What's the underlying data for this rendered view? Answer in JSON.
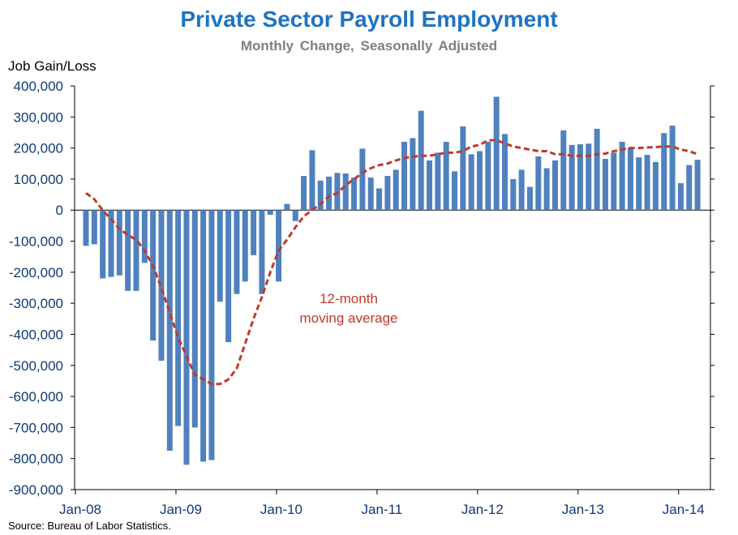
{
  "chart_data": {
    "type": "bar",
    "title": "Private Sector Payroll Employment",
    "subtitle": "Monthly Change, Seasonally Adjusted",
    "ylabel": "Job Gain/Loss",
    "xlabel": "",
    "source": "Source: Bureau of Labor Statistics.",
    "ylim": [
      -900000,
      400000
    ],
    "y_ticks": [
      400000,
      300000,
      200000,
      100000,
      0,
      -100000,
      -200000,
      -300000,
      -400000,
      -500000,
      -600000,
      -700000,
      -800000,
      -900000
    ],
    "y_tick_labels": [
      "400,000",
      "300,000",
      "200,000",
      "100,000",
      "0",
      "-100,000",
      "-200,000",
      "-300,000",
      "-400,000",
      "-500,000",
      "-600,000",
      "-700,000",
      "-800,000",
      "-900,000"
    ],
    "x_tick_labels": [
      "Jan-08",
      "Jan-09",
      "Jan-10",
      "Jan-11",
      "Jan-12",
      "Jan-13",
      "Jan-14"
    ],
    "start_month": "Jan-08",
    "series": [
      {
        "name": "Monthly change",
        "color": "#4f81bd",
        "values": [
          -115000,
          -110000,
          -220000,
          -215000,
          -210000,
          -260000,
          -260000,
          -170000,
          -420000,
          -485000,
          -775000,
          -695000,
          -820000,
          -700000,
          -810000,
          -805000,
          -295000,
          -425000,
          -270000,
          -230000,
          -145000,
          -270000,
          -15000,
          -230000,
          20000,
          -35000,
          110000,
          193000,
          95000,
          108000,
          120000,
          118000,
          105000,
          198000,
          105000,
          70000,
          110000,
          130000,
          220000,
          232000,
          320000,
          160000,
          185000,
          220000,
          125000,
          270000,
          180000,
          190000,
          220000,
          365000,
          245000,
          100000,
          130000,
          75000,
          173000,
          135000,
          160000,
          257000,
          210000,
          212000,
          214000,
          262000,
          165000,
          185000,
          220000,
          202000,
          170000,
          178000,
          155000,
          248000,
          272000,
          87000,
          145000,
          162000
        ]
      },
      {
        "name": "12-month moving average",
        "color": "#c0392b",
        "style": "dashed",
        "values": [
          55000,
          35000,
          0,
          -30000,
          -60000,
          -80000,
          -95000,
          -130000,
          -180000,
          -250000,
          -330000,
          -410000,
          -470000,
          -530000,
          -545000,
          -560000,
          -560000,
          -545000,
          -510000,
          -430000,
          -350000,
          -280000,
          -200000,
          -130000,
          -95000,
          -55000,
          -20000,
          0,
          20000,
          45000,
          55000,
          80000,
          100000,
          120000,
          135000,
          145000,
          150000,
          160000,
          168000,
          172000,
          175000,
          175000,
          180000,
          185000,
          185000,
          190000,
          205000,
          210000,
          225000,
          225000,
          215000,
          205000,
          200000,
          195000,
          190000,
          190000,
          180000,
          180000,
          175000,
          175000,
          175000,
          180000,
          182000,
          190000,
          195000,
          200000,
          200000,
          202000,
          203000,
          205000,
          205000,
          195000,
          190000,
          180000
        ]
      }
    ],
    "annotations": [
      {
        "text": "12-month",
        "target": "Monthly moving average label line 1"
      },
      {
        "text": "moving average",
        "target": "Monthly moving average label line 2"
      }
    ]
  }
}
